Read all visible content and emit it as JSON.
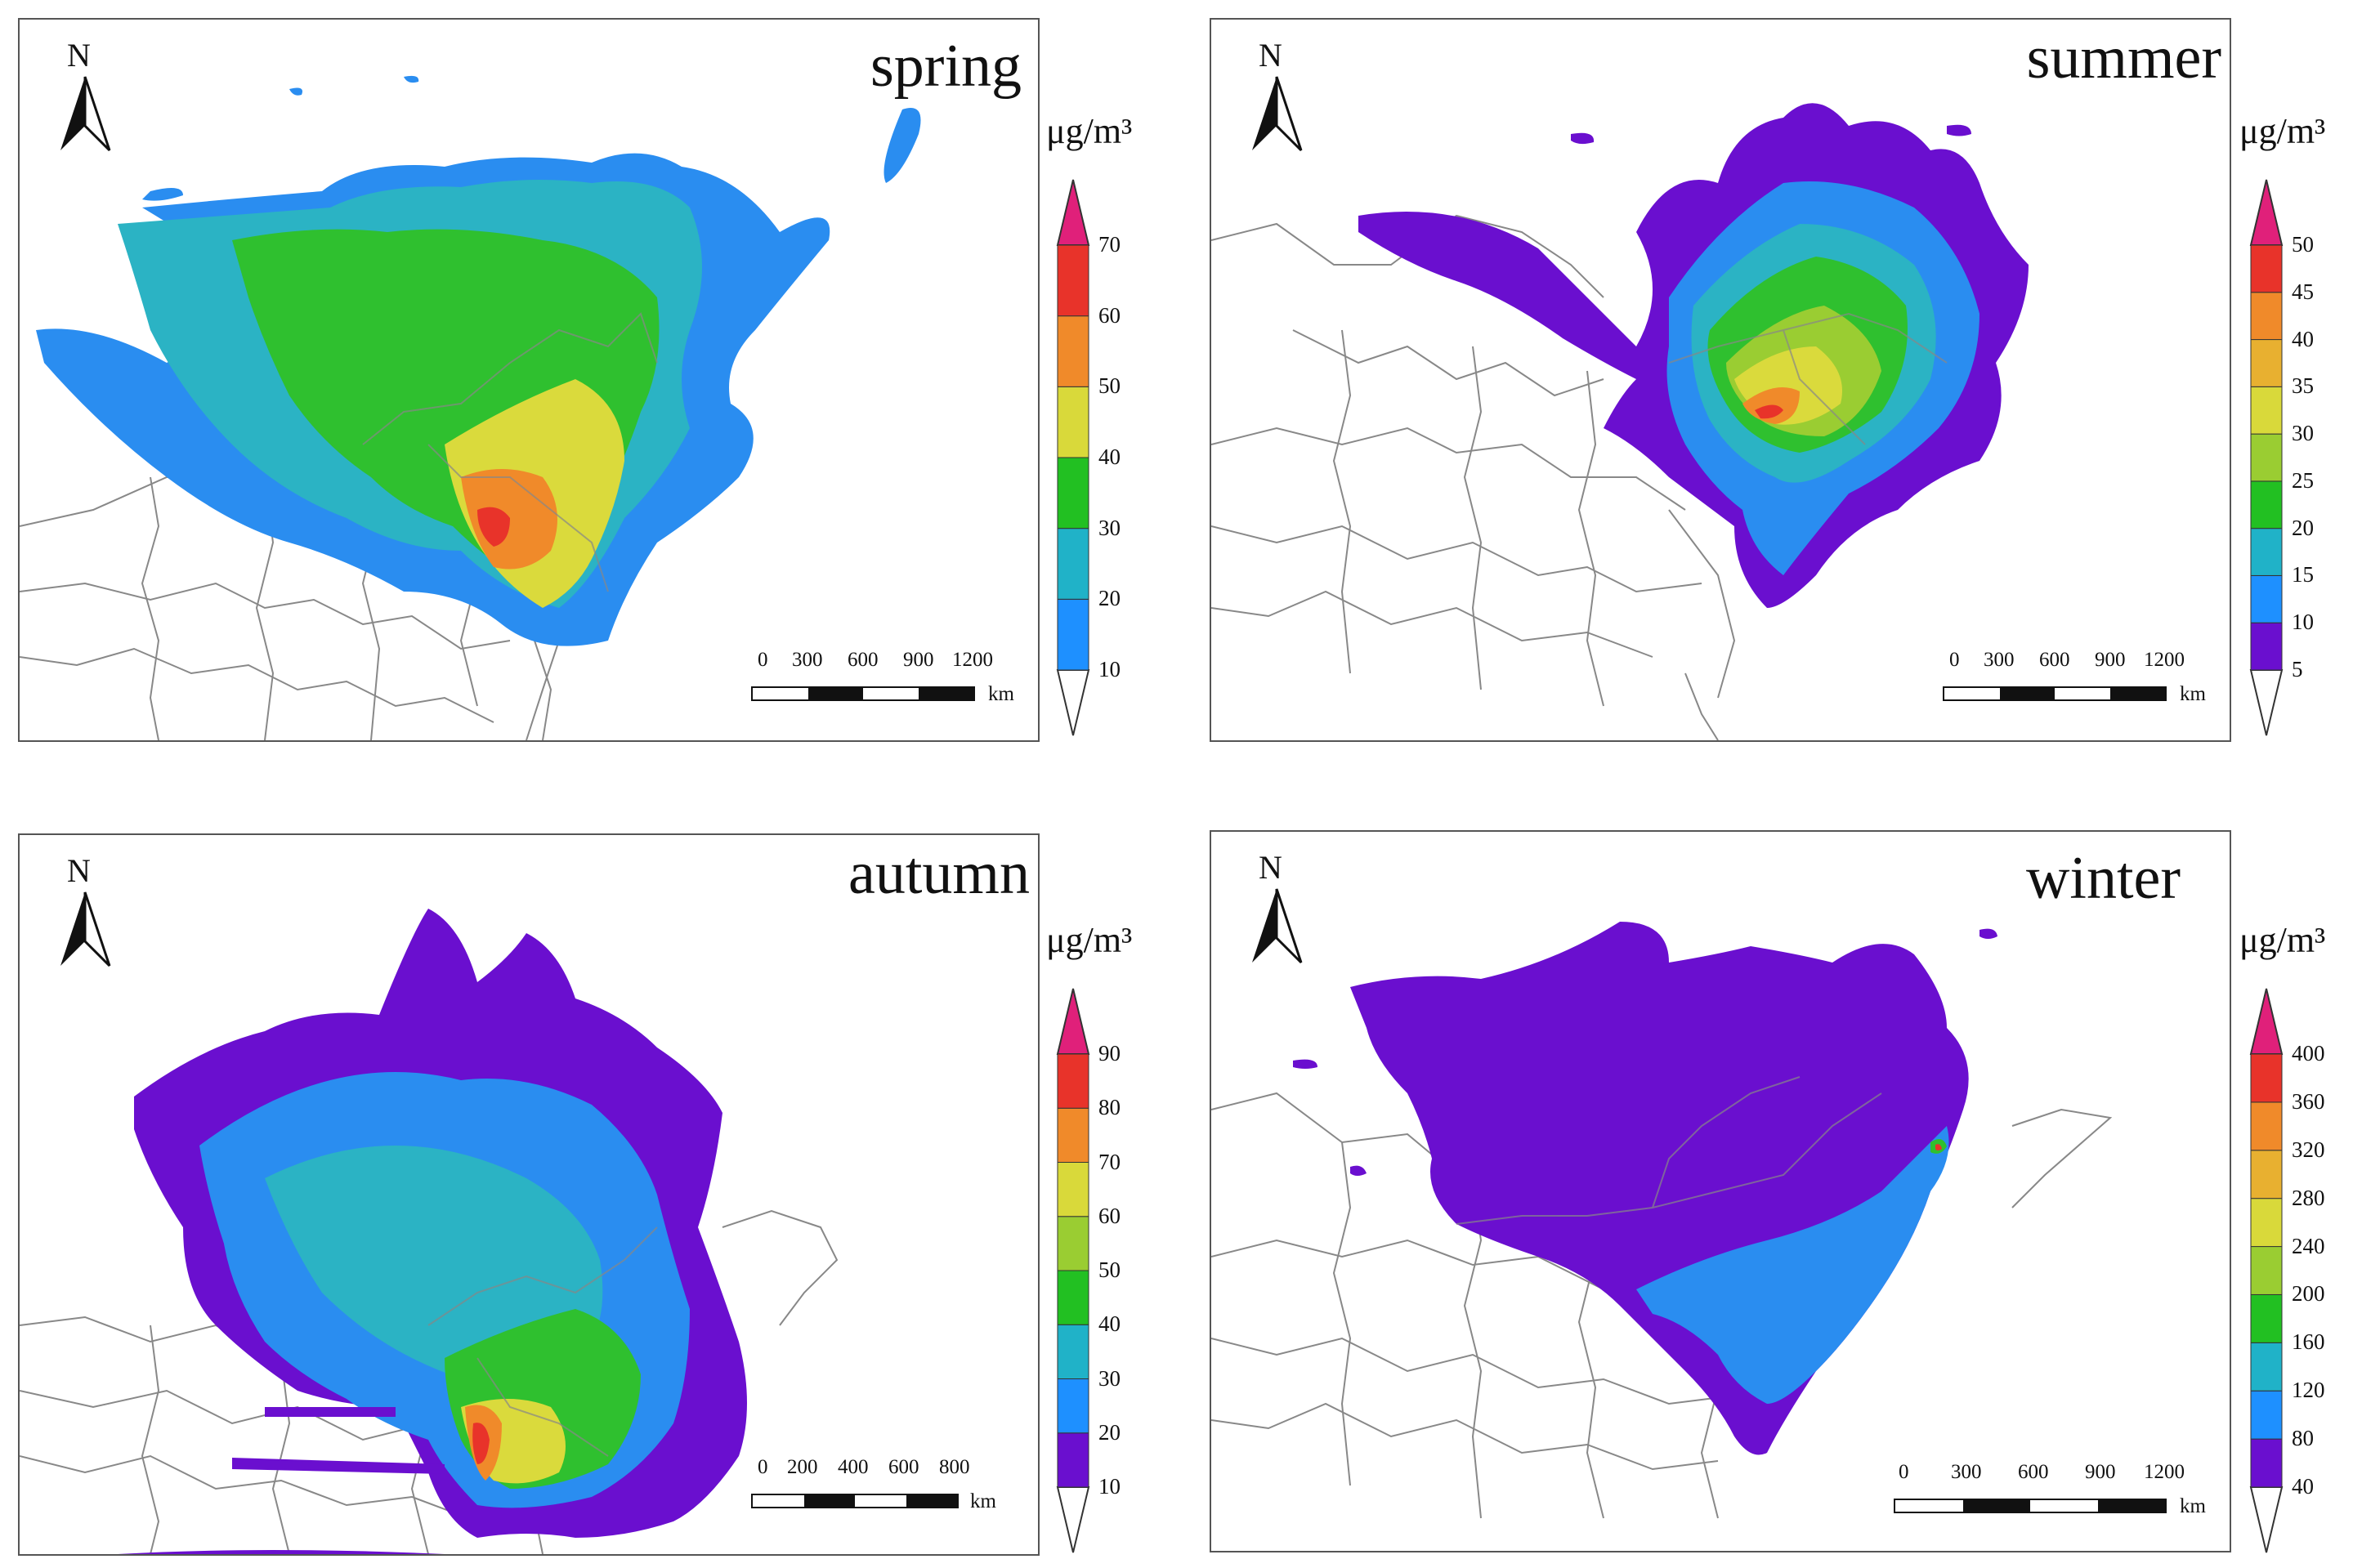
{
  "panels": [
    {
      "season": "spring",
      "unit": "μg/m³",
      "north": "N",
      "scale": {
        "ticks": [
          "0",
          "300",
          "600",
          "900",
          "1200"
        ],
        "unit": "km"
      },
      "legend": {
        "ticks": [
          "10",
          "20",
          "30",
          "40",
          "50",
          "60",
          "70"
        ],
        "colors": [
          "#1e90ff",
          "#20b2c8",
          "#22c022",
          "#d9d93a",
          "#f08a2a",
          "#e8332a"
        ]
      }
    },
    {
      "season": "summer",
      "unit": "μg/m³",
      "north": "N",
      "scale": {
        "ticks": [
          "0",
          "300",
          "600",
          "900",
          "1200"
        ],
        "unit": "km"
      },
      "legend": {
        "ticks": [
          "5",
          "10",
          "15",
          "20",
          "25",
          "30",
          "35",
          "40",
          "45",
          "50"
        ],
        "colors": [
          "#6a0fcf",
          "#1e90ff",
          "#20b2c8",
          "#22c022",
          "#9acd32",
          "#d9d93a",
          "#e8b030",
          "#f08a2a",
          "#e8332a"
        ]
      }
    },
    {
      "season": "autumn",
      "unit": "μg/m³",
      "north": "N",
      "scale": {
        "ticks": [
          "0",
          "200",
          "400",
          "600",
          "800"
        ],
        "unit": "km"
      },
      "legend": {
        "ticks": [
          "10",
          "20",
          "30",
          "40",
          "50",
          "60",
          "70",
          "80",
          "90"
        ],
        "colors": [
          "#6a0fcf",
          "#1e90ff",
          "#20b2c8",
          "#22c022",
          "#9acd32",
          "#d9d93a",
          "#f08a2a",
          "#e8332a"
        ]
      }
    },
    {
      "season": "winter",
      "unit": "μg/m³",
      "north": "N",
      "scale": {
        "ticks": [
          "0",
          "300",
          "600",
          "900",
          "1200"
        ],
        "unit": "km"
      },
      "legend": {
        "ticks": [
          "40",
          "80",
          "120",
          "160",
          "200",
          "240",
          "280",
          "320",
          "360",
          "400"
        ],
        "colors": [
          "#6a0fcf",
          "#1e90ff",
          "#20b2c8",
          "#22c022",
          "#9acd32",
          "#d9d93a",
          "#e8b030",
          "#f08a2a",
          "#e8332a"
        ]
      }
    }
  ],
  "legend_cap_color": "#e0207a"
}
